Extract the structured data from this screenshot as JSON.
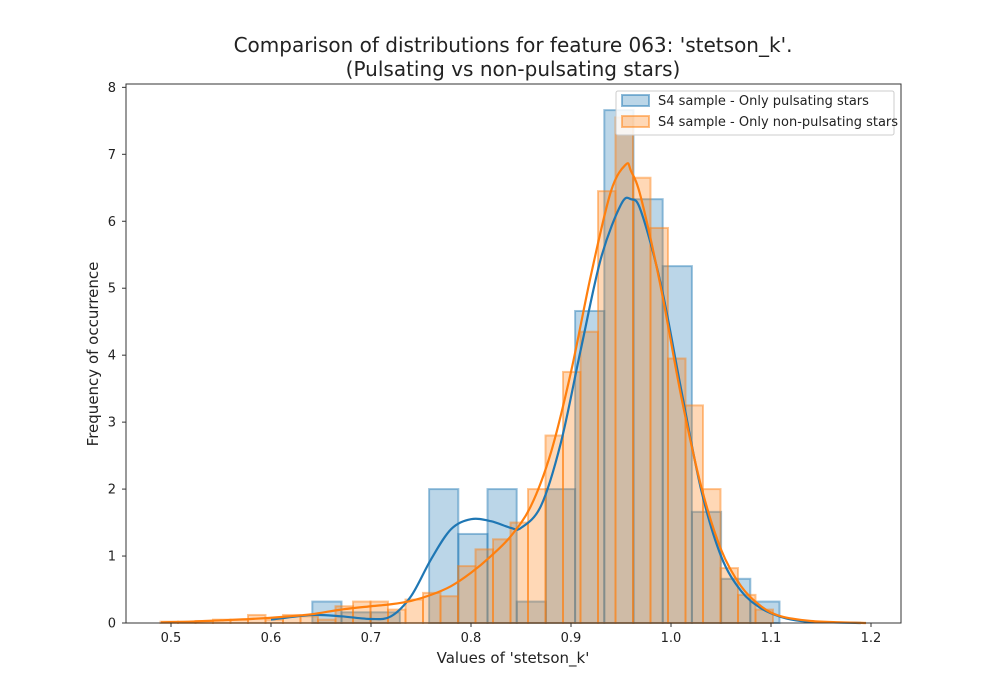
{
  "chart_data": {
    "type": "histogram",
    "title": [
      "Comparison of distributions for feature 063: 'stetson_k'.",
      "(Pulsating vs non-pulsating stars)"
    ],
    "xlabel": "Values of 'stetson_k'",
    "ylabel": "Frequency of occurrence",
    "xlim": [
      0.455,
      1.23
    ],
    "ylim": [
      0,
      8.05
    ],
    "xticks": [
      0.5,
      0.6,
      0.7,
      0.8,
      0.9,
      1.0,
      1.1,
      1.2
    ],
    "xtick_labels": [
      "0.5",
      "0.6",
      "0.7",
      "0.8",
      "0.9",
      "1.0",
      "1.1",
      "1.2"
    ],
    "yticks": [
      0,
      1,
      2,
      3,
      4,
      5,
      6,
      7,
      8
    ],
    "ytick_labels": [
      "0",
      "1",
      "2",
      "3",
      "4",
      "5",
      "6",
      "7",
      "8"
    ],
    "legend_position": "top-right",
    "grid": false,
    "series": [
      {
        "name": "S4 sample - Only pulsating stars",
        "color": "#1f77b4",
        "bin_width": 0.0292,
        "bins": [
          {
            "x": 0.6413,
            "h": 0.32
          },
          {
            "x": 0.6705,
            "h": 0.16
          },
          {
            "x": 0.6997,
            "h": 0.16
          },
          {
            "x": 0.7289,
            "h": 0.0
          },
          {
            "x": 0.7581,
            "h": 2.0
          },
          {
            "x": 0.7873,
            "h": 1.33
          },
          {
            "x": 0.8165,
            "h": 2.0
          },
          {
            "x": 0.8457,
            "h": 0.32
          },
          {
            "x": 0.8749,
            "h": 2.0
          },
          {
            "x": 0.9041,
            "h": 4.66
          },
          {
            "x": 0.9333,
            "h": 7.66
          },
          {
            "x": 0.9625,
            "h": 6.33
          },
          {
            "x": 0.9917,
            "h": 5.33
          },
          {
            "x": 1.0209,
            "h": 1.66
          },
          {
            "x": 1.0501,
            "h": 0.66
          },
          {
            "x": 1.0793,
            "h": 0.32
          }
        ],
        "kde": {
          "x": [
            0.6,
            0.64,
            0.67,
            0.7,
            0.72,
            0.74,
            0.76,
            0.78,
            0.8,
            0.82,
            0.84,
            0.85,
            0.87,
            0.89,
            0.91,
            0.93,
            0.95,
            0.96,
            0.97,
            0.99,
            1.01,
            1.03,
            1.05,
            1.07,
            1.09,
            1.11,
            1.13,
            1.16,
            1.19
          ],
          "y": [
            0.05,
            0.12,
            0.1,
            0.06,
            0.1,
            0.4,
            0.95,
            1.4,
            1.55,
            1.52,
            1.42,
            1.42,
            1.75,
            2.7,
            4.1,
            5.45,
            6.25,
            6.33,
            6.15,
            5.05,
            3.5,
            2.0,
            1.0,
            0.48,
            0.22,
            0.09,
            0.03,
            0.01,
            0.0
          ]
        }
      },
      {
        "name": "S4 sample - Only non-pulsating stars",
        "color": "#ff7f0e",
        "bin_width": 0.0175,
        "bins": [
          {
            "x": 0.4895,
            "h": 0.02
          },
          {
            "x": 0.507,
            "h": 0.02
          },
          {
            "x": 0.5245,
            "h": 0.03
          },
          {
            "x": 0.542,
            "h": 0.05
          },
          {
            "x": 0.5595,
            "h": 0.05
          },
          {
            "x": 0.577,
            "h": 0.12
          },
          {
            "x": 0.5945,
            "h": 0.05
          },
          {
            "x": 0.612,
            "h": 0.12
          },
          {
            "x": 0.6295,
            "h": 0.1
          },
          {
            "x": 0.647,
            "h": 0.05
          },
          {
            "x": 0.6645,
            "h": 0.25
          },
          {
            "x": 0.682,
            "h": 0.32
          },
          {
            "x": 0.6995,
            "h": 0.32
          },
          {
            "x": 0.717,
            "h": 0.2
          },
          {
            "x": 0.7345,
            "h": 0.35
          },
          {
            "x": 0.752,
            "h": 0.45
          },
          {
            "x": 0.7695,
            "h": 0.4
          },
          {
            "x": 0.787,
            "h": 0.85
          },
          {
            "x": 0.8045,
            "h": 1.1
          },
          {
            "x": 0.822,
            "h": 1.25
          },
          {
            "x": 0.8395,
            "h": 1.5
          },
          {
            "x": 0.857,
            "h": 2.0
          },
          {
            "x": 0.8745,
            "h": 2.8
          },
          {
            "x": 0.892,
            "h": 3.75
          },
          {
            "x": 0.9095,
            "h": 4.35
          },
          {
            "x": 0.927,
            "h": 6.45
          },
          {
            "x": 0.9445,
            "h": 7.55
          },
          {
            "x": 0.962,
            "h": 6.65
          },
          {
            "x": 0.9795,
            "h": 5.9
          },
          {
            "x": 0.997,
            "h": 3.95
          },
          {
            "x": 1.0145,
            "h": 3.25
          },
          {
            "x": 1.032,
            "h": 2.0
          },
          {
            "x": 1.0495,
            "h": 0.82
          },
          {
            "x": 1.067,
            "h": 0.42
          },
          {
            "x": 1.0845,
            "h": 0.2
          }
        ],
        "kde": {
          "x": [
            0.49,
            0.52,
            0.55,
            0.58,
            0.61,
            0.64,
            0.67,
            0.7,
            0.72,
            0.74,
            0.76,
            0.78,
            0.8,
            0.82,
            0.84,
            0.86,
            0.88,
            0.9,
            0.92,
            0.94,
            0.955,
            0.96,
            0.97,
            0.99,
            1.01,
            1.03,
            1.05,
            1.07,
            1.09,
            1.11,
            1.14,
            1.17,
            1.195
          ],
          "y": [
            0.01,
            0.02,
            0.04,
            0.06,
            0.09,
            0.13,
            0.2,
            0.25,
            0.28,
            0.33,
            0.42,
            0.55,
            0.75,
            1.0,
            1.3,
            1.75,
            2.55,
            3.75,
            5.2,
            6.45,
            6.85,
            6.75,
            6.35,
            5.0,
            3.4,
            2.05,
            1.1,
            0.55,
            0.25,
            0.1,
            0.03,
            0.01,
            0.0
          ]
        }
      }
    ]
  }
}
